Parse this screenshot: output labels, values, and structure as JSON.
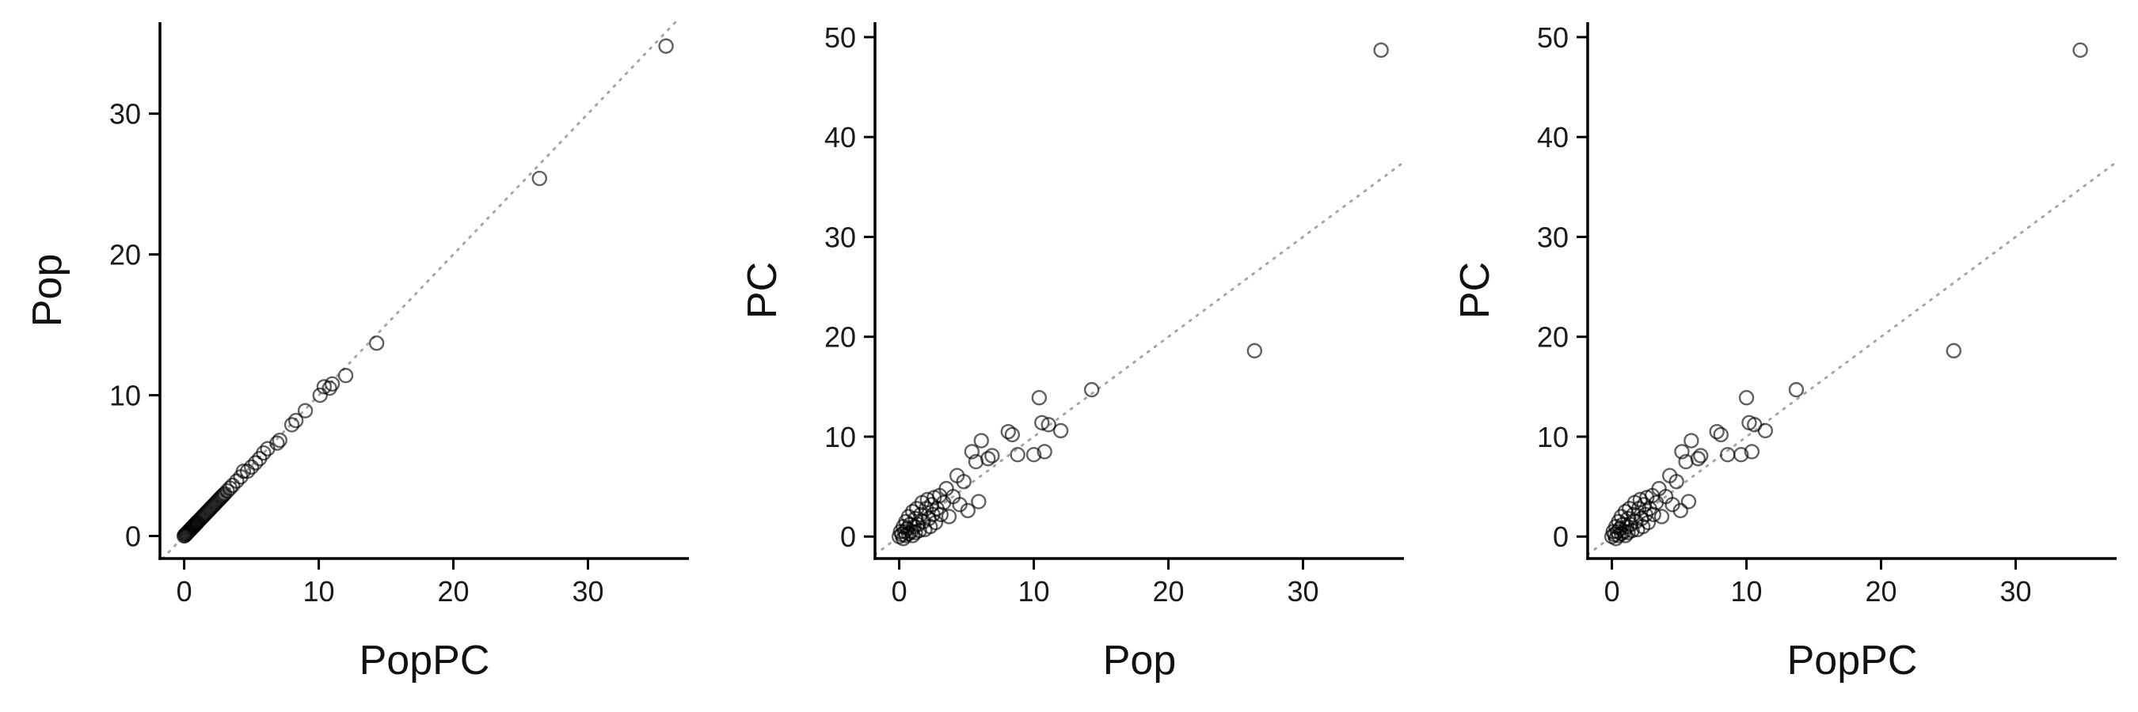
{
  "chart_data": [
    {
      "type": "scatter",
      "xlabel": "PopPC",
      "ylabel": "Pop",
      "xlim": [
        -1.8,
        37.5
      ],
      "ylim": [
        -1.6,
        36.5
      ],
      "xticks": [
        0,
        10,
        20,
        30
      ],
      "yticks": [
        0,
        10,
        20,
        30
      ],
      "reference_line": "y = x (dotted gray)",
      "points": [
        [
          0.0,
          0.0
        ],
        [
          0.05,
          0.05
        ],
        [
          0.1,
          0.1
        ],
        [
          0.15,
          0.15
        ],
        [
          0.2,
          0.2
        ],
        [
          0.25,
          0.25
        ],
        [
          0.3,
          0.3
        ],
        [
          0.35,
          0.35
        ],
        [
          0.4,
          0.4
        ],
        [
          0.45,
          0.45
        ],
        [
          0.5,
          0.5
        ],
        [
          0.55,
          0.55
        ],
        [
          0.6,
          0.6
        ],
        [
          0.65,
          0.65
        ],
        [
          0.7,
          0.7
        ],
        [
          0.75,
          0.75
        ],
        [
          0.8,
          0.8
        ],
        [
          0.85,
          0.85
        ],
        [
          0.9,
          0.9
        ],
        [
          0.95,
          0.95
        ],
        [
          1.0,
          1.0
        ],
        [
          1.1,
          1.1
        ],
        [
          1.2,
          1.2
        ],
        [
          1.3,
          1.3
        ],
        [
          1.4,
          1.4
        ],
        [
          1.5,
          1.5
        ],
        [
          1.6,
          1.6
        ],
        [
          1.7,
          1.7
        ],
        [
          1.8,
          1.8
        ],
        [
          1.9,
          1.9
        ],
        [
          2.0,
          2.0
        ],
        [
          2.1,
          2.1
        ],
        [
          2.2,
          2.2
        ],
        [
          2.3,
          2.3
        ],
        [
          2.4,
          2.4
        ],
        [
          2.5,
          2.5
        ],
        [
          2.6,
          2.6
        ],
        [
          2.7,
          2.7
        ],
        [
          2.8,
          2.8
        ],
        [
          2.9,
          2.9
        ],
        [
          3.0,
          3.0
        ],
        [
          3.2,
          3.2
        ],
        [
          3.4,
          3.4
        ],
        [
          3.6,
          3.6
        ],
        [
          3.9,
          3.9
        ],
        [
          4.2,
          4.2
        ],
        [
          4.4,
          4.6
        ],
        [
          4.7,
          4.6
        ],
        [
          5.0,
          4.9
        ],
        [
          5.3,
          5.2
        ],
        [
          5.6,
          5.5
        ],
        [
          5.9,
          5.9
        ],
        [
          6.2,
          6.2
        ],
        [
          6.9,
          6.6
        ],
        [
          7.1,
          6.8
        ],
        [
          8.0,
          7.9
        ],
        [
          8.3,
          8.2
        ],
        [
          9.0,
          8.9
        ],
        [
          10.1,
          10.0
        ],
        [
          10.4,
          10.6
        ],
        [
          10.8,
          10.5
        ],
        [
          11.0,
          10.8
        ],
        [
          12.0,
          11.4
        ],
        [
          14.3,
          13.7
        ],
        [
          26.4,
          25.4
        ],
        [
          35.8,
          34.8
        ]
      ]
    },
    {
      "type": "scatter",
      "xlabel": "Pop",
      "ylabel": "PC",
      "xlim": [
        -1.8,
        37.5
      ],
      "ylim": [
        -2.2,
        51.5
      ],
      "xticks": [
        0,
        10,
        20,
        30
      ],
      "yticks": [
        0,
        10,
        20,
        30,
        40,
        50
      ],
      "reference_line": "y = x (dotted gray)",
      "points": [
        [
          0.0,
          0.0
        ],
        [
          0.1,
          0.5
        ],
        [
          0.2,
          0.2
        ],
        [
          0.3,
          1.0
        ],
        [
          0.3,
          -0.2
        ],
        [
          0.4,
          0.5
        ],
        [
          0.5,
          1.5
        ],
        [
          0.5,
          0.1
        ],
        [
          0.6,
          0.8
        ],
        [
          0.7,
          2.0
        ],
        [
          0.7,
          0.3
        ],
        [
          0.8,
          1.2
        ],
        [
          0.9,
          0.5
        ],
        [
          1.0,
          2.5
        ],
        [
          1.0,
          0.1
        ],
        [
          1.1,
          1.0
        ],
        [
          1.2,
          1.8
        ],
        [
          1.2,
          0.4
        ],
        [
          1.3,
          2.8
        ],
        [
          1.4,
          1.2
        ],
        [
          1.5,
          0.6
        ],
        [
          1.6,
          2.2
        ],
        [
          1.7,
          3.4
        ],
        [
          1.8,
          1.5
        ],
        [
          1.9,
          0.7
        ],
        [
          2.0,
          2.8
        ],
        [
          2.1,
          3.7
        ],
        [
          2.2,
          1.8
        ],
        [
          2.3,
          1.0
        ],
        [
          2.4,
          3.2
        ],
        [
          2.5,
          2.2
        ],
        [
          2.6,
          3.9
        ],
        [
          2.7,
          1.4
        ],
        [
          2.8,
          2.8
        ],
        [
          3.0,
          4.1
        ],
        [
          3.1,
          2.2
        ],
        [
          3.3,
          3.4
        ],
        [
          3.5,
          4.8
        ],
        [
          3.7,
          2.0
        ],
        [
          4.0,
          4.0
        ],
        [
          4.3,
          6.1
        ],
        [
          4.5,
          3.2
        ],
        [
          4.8,
          5.5
        ],
        [
          5.1,
          2.6
        ],
        [
          5.4,
          8.5
        ],
        [
          5.7,
          7.5
        ],
        [
          5.9,
          3.5
        ],
        [
          6.1,
          9.6
        ],
        [
          6.6,
          7.8
        ],
        [
          6.9,
          8.1
        ],
        [
          8.1,
          10.5
        ],
        [
          8.4,
          10.2
        ],
        [
          8.8,
          8.2
        ],
        [
          10.0,
          8.2
        ],
        [
          10.4,
          13.9
        ],
        [
          10.6,
          11.4
        ],
        [
          10.8,
          8.5
        ],
        [
          11.1,
          11.2
        ],
        [
          12.0,
          10.6
        ],
        [
          14.3,
          14.7
        ],
        [
          26.4,
          18.6
        ],
        [
          35.8,
          48.7
        ]
      ]
    },
    {
      "type": "scatter",
      "xlabel": "PopPC",
      "ylabel": "PC",
      "xlim": [
        -1.8,
        37.5
      ],
      "ylim": [
        -2.2,
        51.5
      ],
      "xticks": [
        0,
        10,
        20,
        30
      ],
      "yticks": [
        0,
        10,
        20,
        30,
        40,
        50
      ],
      "reference_line": "y = x (dotted gray)",
      "points": [
        [
          0.0,
          0.0
        ],
        [
          0.1,
          0.5
        ],
        [
          0.2,
          0.2
        ],
        [
          0.3,
          1.0
        ],
        [
          0.3,
          -0.2
        ],
        [
          0.4,
          0.5
        ],
        [
          0.5,
          1.5
        ],
        [
          0.5,
          0.1
        ],
        [
          0.6,
          0.8
        ],
        [
          0.7,
          2.0
        ],
        [
          0.7,
          0.3
        ],
        [
          0.8,
          1.2
        ],
        [
          0.9,
          0.5
        ],
        [
          1.0,
          2.5
        ],
        [
          1.0,
          0.1
        ],
        [
          1.1,
          1.0
        ],
        [
          1.2,
          1.8
        ],
        [
          1.2,
          0.4
        ],
        [
          1.3,
          2.8
        ],
        [
          1.4,
          1.2
        ],
        [
          1.5,
          0.6
        ],
        [
          1.6,
          2.2
        ],
        [
          1.7,
          3.4
        ],
        [
          1.8,
          1.5
        ],
        [
          1.9,
          0.7
        ],
        [
          2.0,
          2.8
        ],
        [
          2.1,
          3.7
        ],
        [
          2.2,
          1.8
        ],
        [
          2.3,
          1.0
        ],
        [
          2.4,
          3.2
        ],
        [
          2.5,
          2.2
        ],
        [
          2.6,
          3.9
        ],
        [
          2.7,
          1.4
        ],
        [
          2.8,
          2.8
        ],
        [
          3.0,
          4.1
        ],
        [
          3.1,
          2.2
        ],
        [
          3.3,
          3.4
        ],
        [
          3.5,
          4.8
        ],
        [
          3.7,
          2.0
        ],
        [
          4.0,
          4.0
        ],
        [
          4.3,
          6.1
        ],
        [
          4.5,
          3.2
        ],
        [
          4.8,
          5.5
        ],
        [
          5.1,
          2.6
        ],
        [
          5.2,
          8.5
        ],
        [
          5.5,
          7.5
        ],
        [
          5.7,
          3.5
        ],
        [
          5.9,
          9.6
        ],
        [
          6.4,
          7.8
        ],
        [
          6.6,
          8.1
        ],
        [
          7.8,
          10.5
        ],
        [
          8.1,
          10.2
        ],
        [
          8.6,
          8.2
        ],
        [
          9.6,
          8.2
        ],
        [
          10.0,
          13.9
        ],
        [
          10.2,
          11.4
        ],
        [
          10.4,
          8.5
        ],
        [
          10.6,
          11.2
        ],
        [
          11.4,
          10.6
        ],
        [
          13.7,
          14.7
        ],
        [
          25.4,
          18.6
        ],
        [
          34.8,
          48.7
        ]
      ]
    }
  ]
}
